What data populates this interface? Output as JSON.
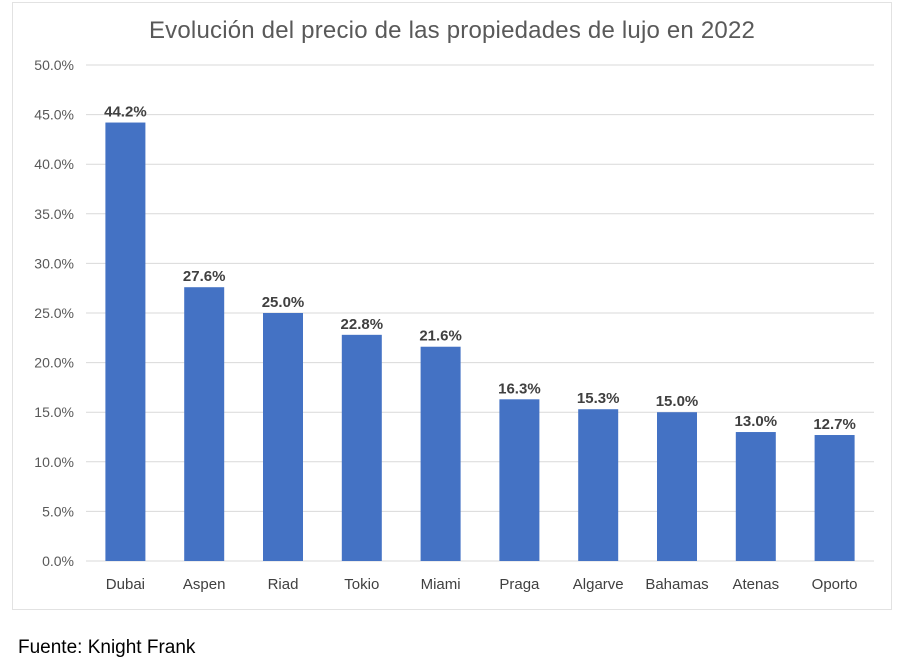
{
  "chart_data": {
    "type": "bar",
    "title": "Evolución del precio de las propiedades de lujo en 2022",
    "categories": [
      "Dubai",
      "Aspen",
      "Riad",
      "Tokio",
      "Miami",
      "Praga",
      "Algarve",
      "Bahamas",
      "Atenas",
      "Oporto"
    ],
    "values": [
      44.2,
      27.6,
      25.0,
      22.8,
      21.6,
      16.3,
      15.3,
      15.0,
      13.0,
      12.7
    ],
    "value_labels": [
      "44.2%",
      "27.6%",
      "25.0%",
      "22.8%",
      "21.6%",
      "16.3%",
      "15.3%",
      "15.0%",
      "13.0%",
      "12.7%"
    ],
    "ylim": [
      0,
      50
    ],
    "y_ticks": [
      0,
      5,
      10,
      15,
      20,
      25,
      30,
      35,
      40,
      45,
      50
    ],
    "y_tick_labels": [
      "0.0%",
      "5.0%",
      "10.0%",
      "15.0%",
      "20.0%",
      "25.0%",
      "30.0%",
      "35.0%",
      "40.0%",
      "45.0%",
      "50.0%"
    ],
    "xlabel": "",
    "ylabel": "",
    "grid": true,
    "bar_color": "#4472C4",
    "grid_color": "#d9d9d9"
  },
  "source": "Fuente: Knight Frank"
}
